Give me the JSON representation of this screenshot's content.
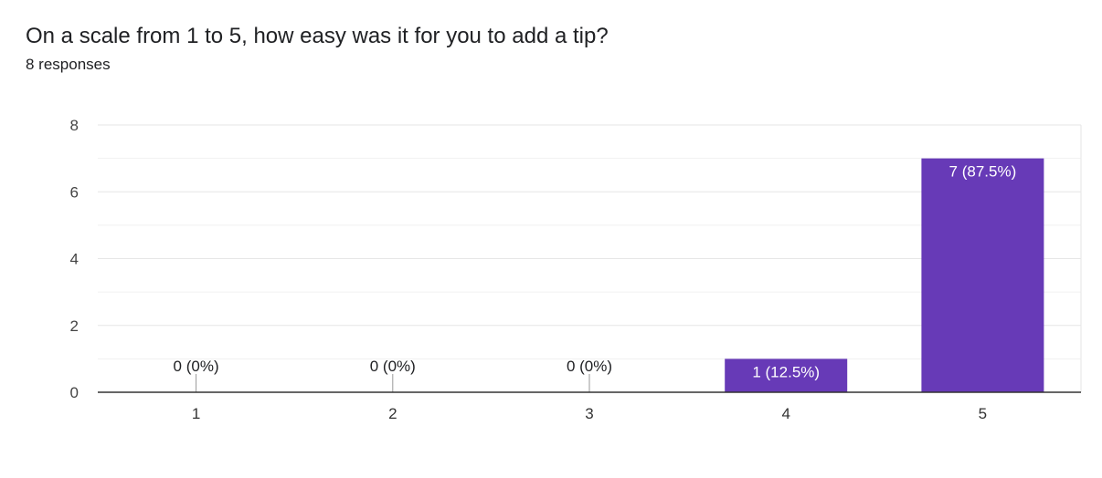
{
  "header": {
    "title": "On a scale from 1 to 5, how easy was it for you to add a tip?",
    "subtitle": "8 responses"
  },
  "colors": {
    "bar": "#673ab7",
    "grid": "#e6e6e6",
    "axis": "#333333",
    "label_outside": "#202124",
    "label_inside": "#ffffff"
  },
  "chart_data": {
    "type": "bar",
    "title": "On a scale from 1 to 5, how easy was it for you to add a tip?",
    "subtitle": "8 responses",
    "categories": [
      "1",
      "2",
      "3",
      "4",
      "5"
    ],
    "values": [
      0,
      0,
      0,
      1,
      7
    ],
    "data_labels": [
      "0 (0%)",
      "0 (0%)",
      "0 (0%)",
      "1 (12.5%)",
      "7 (87.5%)"
    ],
    "ylim": [
      0,
      8
    ],
    "yticks": [
      0,
      2,
      4,
      6,
      8
    ],
    "minor_grid_step": 1,
    "grid": true,
    "legend": "none"
  }
}
